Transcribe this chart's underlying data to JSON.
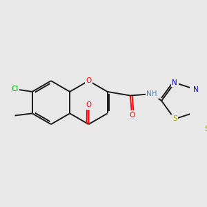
{
  "background_color": "#e8e8e8",
  "bond_color": "#1a1a1a",
  "atom_colors": {
    "O": "#ff0000",
    "N": "#0000cc",
    "S": "#aaaa00",
    "Cl": "#00aa00",
    "H": "#5588aa"
  },
  "figsize": [
    3.0,
    3.0
  ],
  "dpi": 100,
  "bond_lw": 1.4,
  "font_size": 7.5,
  "bl": 0.115
}
